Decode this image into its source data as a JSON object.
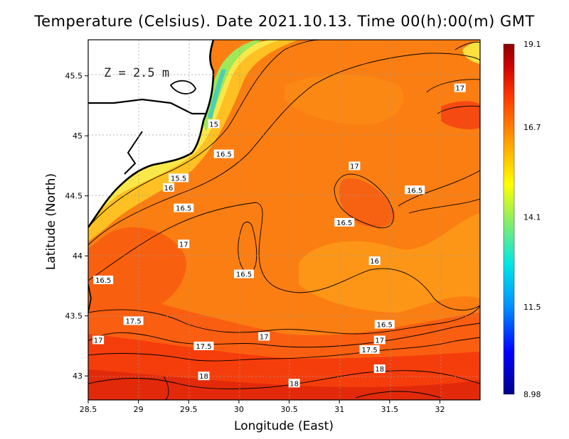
{
  "title": "Temperature (Celsius). Date 2021.10.13. Time 00(h):00(m)  GMT",
  "depth_label": "Z = 2.5 m",
  "x_axis_label": "Longitude (East)",
  "y_axis_label": "Latitude (North)",
  "colorbar": {
    "min": 8.98,
    "max": 19.1,
    "labels": [
      "19.1",
      "16.7",
      "14.1",
      "11.5",
      "8.98"
    ],
    "colors": [
      "#00008b",
      "#0000ff",
      "#00a0ff",
      "#00ffff",
      "#a0ff60",
      "#ffff00",
      "#ffa000",
      "#ff3000",
      "#c00000",
      "#800000"
    ]
  },
  "chart_data": {
    "type": "heatmap",
    "title": "Temperature (Celsius). Date 2021.10.13. Time 00(h):00(m)  GMT",
    "xlabel": "Longitude (East)",
    "ylabel": "Latitude (North)",
    "xlim": [
      28.5,
      32.4
    ],
    "ylim": [
      42.8,
      45.8
    ],
    "x_ticks": [
      "28.5",
      "29",
      "29.5",
      "30",
      "30.5",
      "31",
      "31.5",
      "32"
    ],
    "y_ticks": [
      "43",
      "43.5",
      "44",
      "44.5",
      "45",
      "45.5"
    ],
    "grid": true,
    "value_range": [
      8.98,
      19.1
    ],
    "contour_labels": [
      {
        "text": "17",
        "lon": 32.2,
        "lat": 45.4
      },
      {
        "text": "15",
        "lon": 29.75,
        "lat": 45.1
      },
      {
        "text": "16.5",
        "lon": 29.85,
        "lat": 44.85
      },
      {
        "text": "17",
        "lon": 31.15,
        "lat": 44.75
      },
      {
        "text": "15.5",
        "lon": 29.4,
        "lat": 44.65
      },
      {
        "text": "16",
        "lon": 29.3,
        "lat": 44.57
      },
      {
        "text": "16.5",
        "lon": 31.75,
        "lat": 44.55
      },
      {
        "text": "16.5",
        "lon": 29.45,
        "lat": 44.4
      },
      {
        "text": "16.5",
        "lon": 31.05,
        "lat": 44.28
      },
      {
        "text": "17",
        "lon": 29.45,
        "lat": 44.1
      },
      {
        "text": "16",
        "lon": 31.35,
        "lat": 43.96
      },
      {
        "text": "16.5",
        "lon": 30.05,
        "lat": 43.85
      },
      {
        "text": "16.5",
        "lon": 28.65,
        "lat": 43.8
      },
      {
        "text": "17.5",
        "lon": 28.95,
        "lat": 43.46
      },
      {
        "text": "16.5",
        "lon": 31.45,
        "lat": 43.43
      },
      {
        "text": "17",
        "lon": 31.4,
        "lat": 43.3
      },
      {
        "text": "17",
        "lon": 30.25,
        "lat": 43.33
      },
      {
        "text": "17",
        "lon": 28.6,
        "lat": 43.3
      },
      {
        "text": "17.5",
        "lon": 29.65,
        "lat": 43.25
      },
      {
        "text": "17.5",
        "lon": 31.3,
        "lat": 43.22
      },
      {
        "text": "18",
        "lon": 31.4,
        "lat": 43.06
      },
      {
        "text": "18",
        "lon": 29.65,
        "lat": 43.0
      },
      {
        "text": "18",
        "lon": 30.55,
        "lat": 42.94
      }
    ]
  }
}
